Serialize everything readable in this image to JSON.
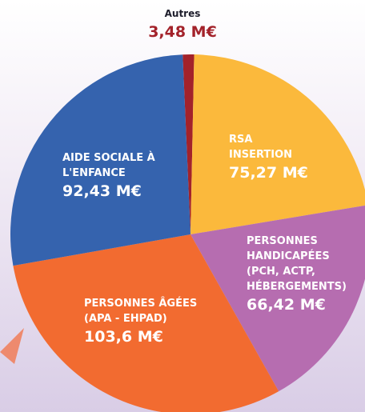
{
  "chart_data": {
    "type": "pie",
    "categories": [
      "Autres",
      "RSA INSERTION",
      "PERSONNES HANDICAPÉES (PCH, ACTP, HÉBERGEMENTS)",
      "PERSONNES ÂGÉES (APA - EHPAD)",
      "AIDE SOCIALE À L'ENFANCE"
    ],
    "values": [
      3.48,
      75.27,
      66.42,
      103.6,
      92.43
    ],
    "value_labels": [
      "3,48 M€",
      "75,27 M€",
      "66,42 M€",
      "103,6 M€",
      "92,43 M€"
    ],
    "colors": [
      "#a3222a",
      "#fbb93c",
      "#b66db0",
      "#f26b30",
      "#3563ae"
    ]
  }
}
